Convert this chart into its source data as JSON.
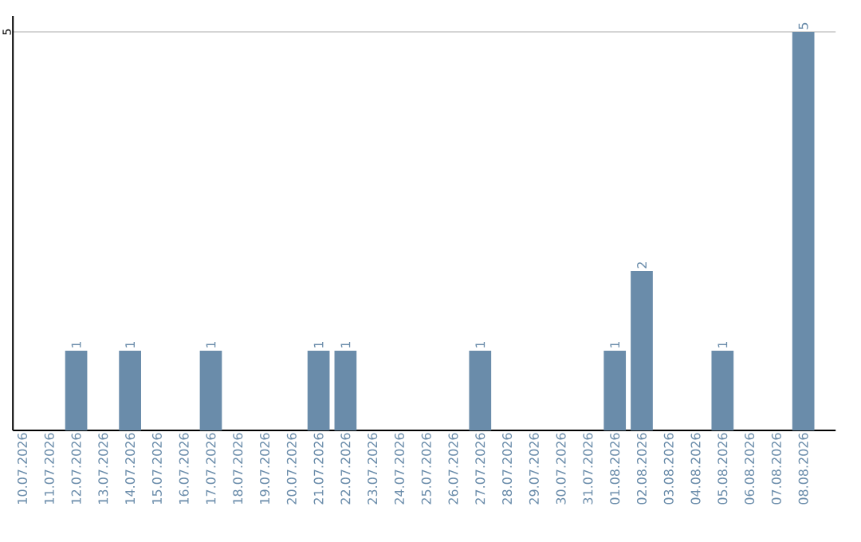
{
  "chart_data": {
    "type": "bar",
    "categories": [
      "10.07.2026",
      "11.07.2026",
      "12.07.2026",
      "13.07.2026",
      "14.07.2026",
      "15.07.2026",
      "16.07.2026",
      "17.07.2026",
      "18.07.2026",
      "19.07.2026",
      "20.07.2026",
      "21.07.2026",
      "22.07.2026",
      "23.07.2026",
      "24.07.2026",
      "25.07.2026",
      "26.07.2026",
      "27.07.2026",
      "28.07.2026",
      "29.07.2026",
      "30.07.2026",
      "31.07.2026",
      "01.08.2026",
      "02.08.2026",
      "03.08.2026",
      "04.08.2026",
      "05.08.2026",
      "06.08.2026",
      "07.08.2026",
      "08.08.2026"
    ],
    "values": [
      0,
      0,
      1,
      0,
      1,
      0,
      0,
      1,
      0,
      0,
      0,
      1,
      1,
      0,
      0,
      0,
      0,
      1,
      0,
      0,
      0,
      0,
      1,
      2,
      0,
      0,
      1,
      0,
      0,
      5
    ],
    "value_labels": [
      null,
      null,
      "1",
      null,
      "1",
      null,
      null,
      "1",
      null,
      null,
      null,
      "1",
      "1",
      null,
      null,
      null,
      null,
      "1",
      null,
      null,
      null,
      null,
      "1",
      "2",
      null,
      null,
      "1",
      null,
      null,
      "5"
    ],
    "color": "#6a8caa",
    "ylim": [
      0,
      5.2
    ],
    "yticks": [
      5
    ],
    "grid": "y"
  }
}
